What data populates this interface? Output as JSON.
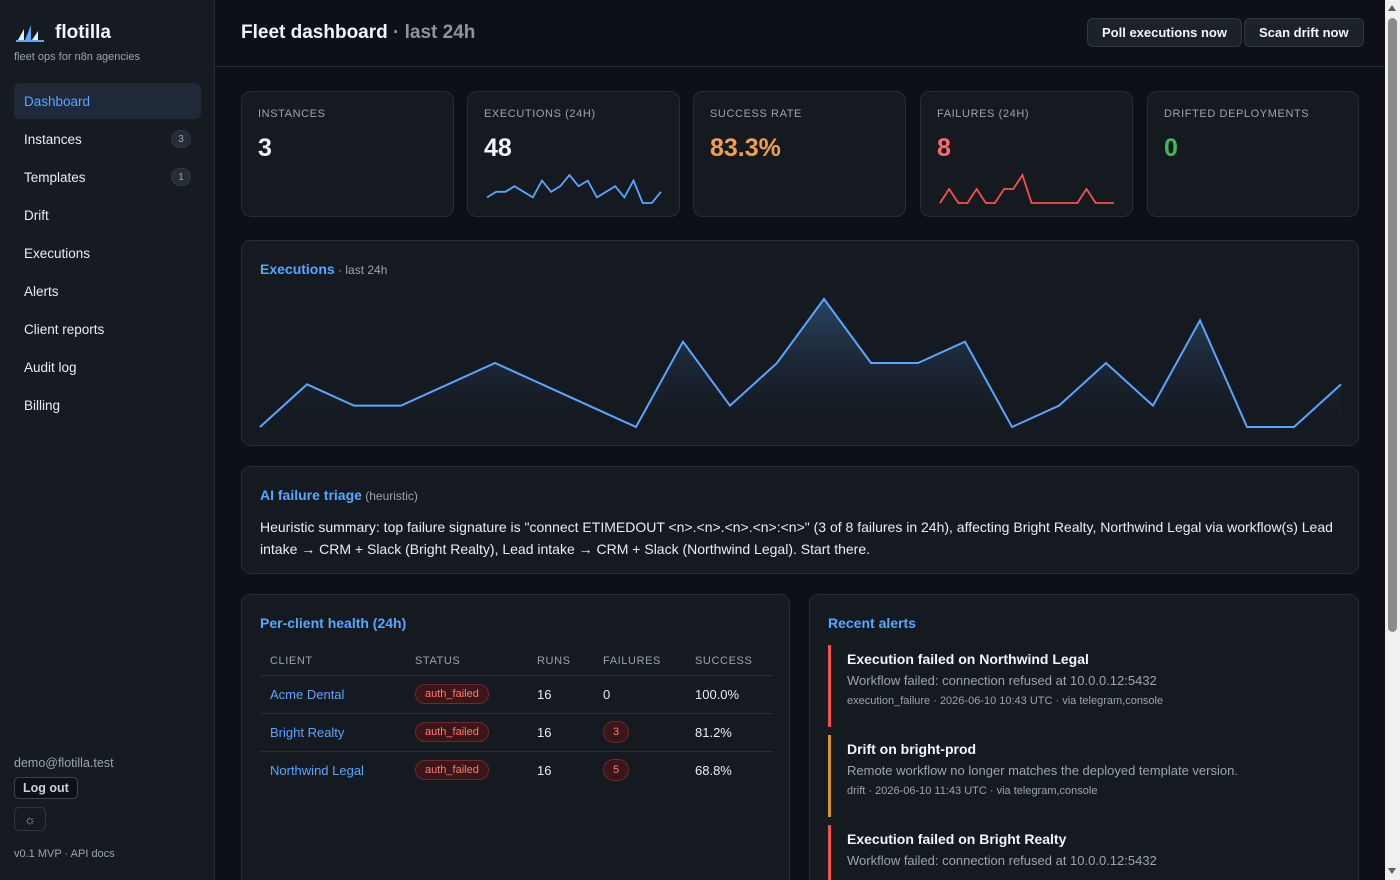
{
  "brand": {
    "name": "flotilla",
    "tagline": "fleet ops for n8n agencies"
  },
  "nav": [
    {
      "label": "Dashboard",
      "badge": null,
      "active": true
    },
    {
      "label": "Instances",
      "badge": "3"
    },
    {
      "label": "Templates",
      "badge": "1"
    },
    {
      "label": "Drift",
      "badge": null
    },
    {
      "label": "Executions",
      "badge": null
    },
    {
      "label": "Alerts",
      "badge": null
    },
    {
      "label": "Client reports",
      "badge": null
    },
    {
      "label": "Audit log",
      "badge": null
    },
    {
      "label": "Billing",
      "badge": null
    }
  ],
  "footer": {
    "email": "demo@flotilla.test",
    "logout": "Log out",
    "version": "v0.1 MVP · API docs"
  },
  "header": {
    "title": "Fleet dashboard",
    "subtitle": " · last 24h",
    "poll_button": "Poll executions now",
    "scan_button": "Scan drift now"
  },
  "stats": [
    {
      "label": "INSTANCES",
      "value": "3",
      "color": "#f0f6fc"
    },
    {
      "label": "EXECUTIONS (24H)",
      "value": "48",
      "color": "#f0f6fc",
      "spark": [
        1,
        2,
        2,
        3,
        2,
        1,
        4,
        2,
        3,
        5,
        3,
        4,
        1,
        2,
        3,
        1,
        4,
        0,
        0,
        2
      ],
      "spark_color": "#58a6ff"
    },
    {
      "label": "SUCCESS RATE",
      "value": "83.3%",
      "color": "#f0a04b"
    },
    {
      "label": "FAILURES (24H)",
      "value": "8",
      "color": "#ff6b6b",
      "spark": [
        0,
        1,
        0,
        0,
        1,
        0,
        0,
        1,
        1,
        2,
        0,
        0,
        0,
        0,
        0,
        0,
        1,
        0,
        0,
        0
      ],
      "spark_color": "#f85149"
    },
    {
      "label": "DRIFTED DEPLOYMENTS",
      "value": "0",
      "color": "#3fb950"
    }
  ],
  "executions_chart": {
    "title": "Executions",
    "subtitle": " · last 24h"
  },
  "chart_data": {
    "type": "area",
    "title": "Executions",
    "subtitle": "last 24h",
    "x": [
      0,
      1,
      2,
      3,
      4,
      5,
      6,
      7,
      8,
      9,
      10,
      11,
      12,
      13,
      14,
      15,
      16,
      17,
      18,
      19,
      20,
      21,
      22,
      23
    ],
    "values": [
      0,
      2,
      1,
      1,
      2,
      3,
      2,
      1,
      0,
      4,
      1,
      3,
      6,
      3,
      3,
      4,
      0,
      1,
      3,
      1,
      5,
      0,
      0,
      2
    ],
    "ylim": [
      0,
      6
    ],
    "grid": false,
    "legend": "none",
    "line_color": "#58a6ff"
  },
  "triage": {
    "title": "AI failure triage",
    "subtitle": " (heuristic)",
    "text": "Heuristic summary: top failure signature is \"connect ETIMEDOUT <n>.<n>.<n>.<n>:<n>\" (3 of 8 failures in 24h), affecting Bright Realty, Northwind Legal via workflow(s) Lead intake → CRM + Slack (Bright Realty), Lead intake → CRM + Slack (Northwind Legal). Start there."
  },
  "health": {
    "title": "Per-client health (24h)",
    "columns": [
      "CLIENT",
      "STATUS",
      "RUNS",
      "FAILURES",
      "SUCCESS"
    ],
    "rows": [
      {
        "client": "Acme Dental",
        "status": "auth_failed",
        "runs": "16",
        "failures": "0",
        "success": "100.0%"
      },
      {
        "client": "Bright Realty",
        "status": "auth_failed",
        "runs": "16",
        "failures": "3",
        "success": "81.2%"
      },
      {
        "client": "Northwind Legal",
        "status": "auth_failed",
        "runs": "16",
        "failures": "5",
        "success": "68.8%"
      }
    ]
  },
  "alerts": {
    "title": "Recent alerts",
    "items": [
      {
        "title": "Execution failed on Northwind Legal",
        "body": "Workflow failed: connection refused at 10.0.0.12:5432",
        "meta": "execution_failure · 2026-06-10 10:43 UTC · via telegram,console",
        "level": "error"
      },
      {
        "title": "Drift on bright-prod",
        "body": "Remote workflow no longer matches the deployed template version.",
        "meta": "drift · 2026-06-10 11:43 UTC · via telegram,console",
        "level": "warning"
      },
      {
        "title": "Execution failed on Bright Realty",
        "body": "Workflow failed: connection refused at 10.0.0.12:5432",
        "meta": "",
        "level": "error"
      }
    ]
  }
}
